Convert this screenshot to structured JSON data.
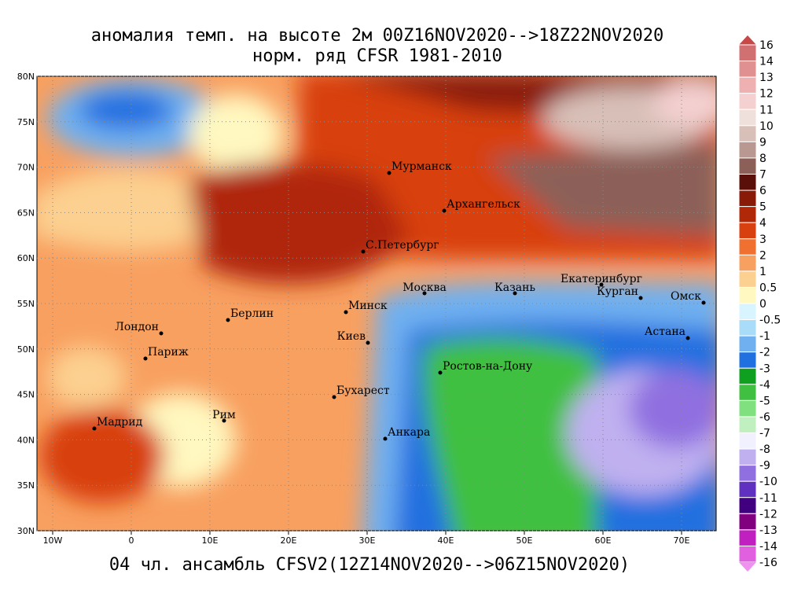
{
  "title": "аномалия темп. на высоте 2м 00Z16NOV2020-->18Z22NOV2020",
  "subtitle": "норм. ряд CFSR 1981-2010",
  "footer": "04 чл. ансамбль CFSV2(12Z14NOV2020-->06Z15NOV2020)",
  "lon_labels": [
    "10W",
    "0",
    "10E",
    "20E",
    "30E",
    "40E",
    "50E",
    "60E",
    "70E"
  ],
  "lat_labels": [
    "30N",
    "35N",
    "40N",
    "45N",
    "50N",
    "55N",
    "60N",
    "65N",
    "70N",
    "75N",
    "80N"
  ],
  "cities": [
    "Мурманск",
    "Архангельск",
    "С.Петербург",
    "Москва",
    "Казань",
    "Екатеринбург",
    "Курган",
    "Омск",
    "Астана",
    "Минск",
    "Берлин",
    "Лондон",
    "Париж",
    "Киев",
    "Ростов-на-Дону",
    "Бухарест",
    "Рим",
    "Мадрид",
    "Анкара"
  ],
  "colorbar": {
    "labels": [
      "16",
      "14",
      "13",
      "12",
      "11",
      "10",
      "9",
      "8",
      "7",
      "6",
      "5",
      "4",
      "3",
      "2",
      "1",
      "0.5",
      "0",
      "-0.5",
      "-1",
      "-2",
      "-3",
      "-4",
      "-5",
      "-6",
      "-7",
      "-8",
      "-9",
      "-10",
      "-11",
      "-12",
      "-13",
      "-14",
      "-16"
    ],
    "colors": [
      "#c84848",
      "#d07070",
      "#e09090",
      "#eeb0b0",
      "#f4d0d0",
      "#efe0dc",
      "#d8c0b8",
      "#b89890",
      "#8c6058",
      "#5a1008",
      "#8a1a08",
      "#b02808",
      "#d84010",
      "#f07030",
      "#f8a060",
      "#fcd090",
      "#fff8c0",
      "#d8f4ff",
      "#a8dcf8",
      "#70b0f0",
      "#2070e0",
      "#10a020",
      "#40c040",
      "#80e080",
      "#c0f0c0",
      "#f0f0ff",
      "#c0b0f0",
      "#9070e0",
      "#6030c0",
      "#400080",
      "#800080",
      "#c020c0",
      "#e060e0",
      "#f090f0"
    ]
  }
}
